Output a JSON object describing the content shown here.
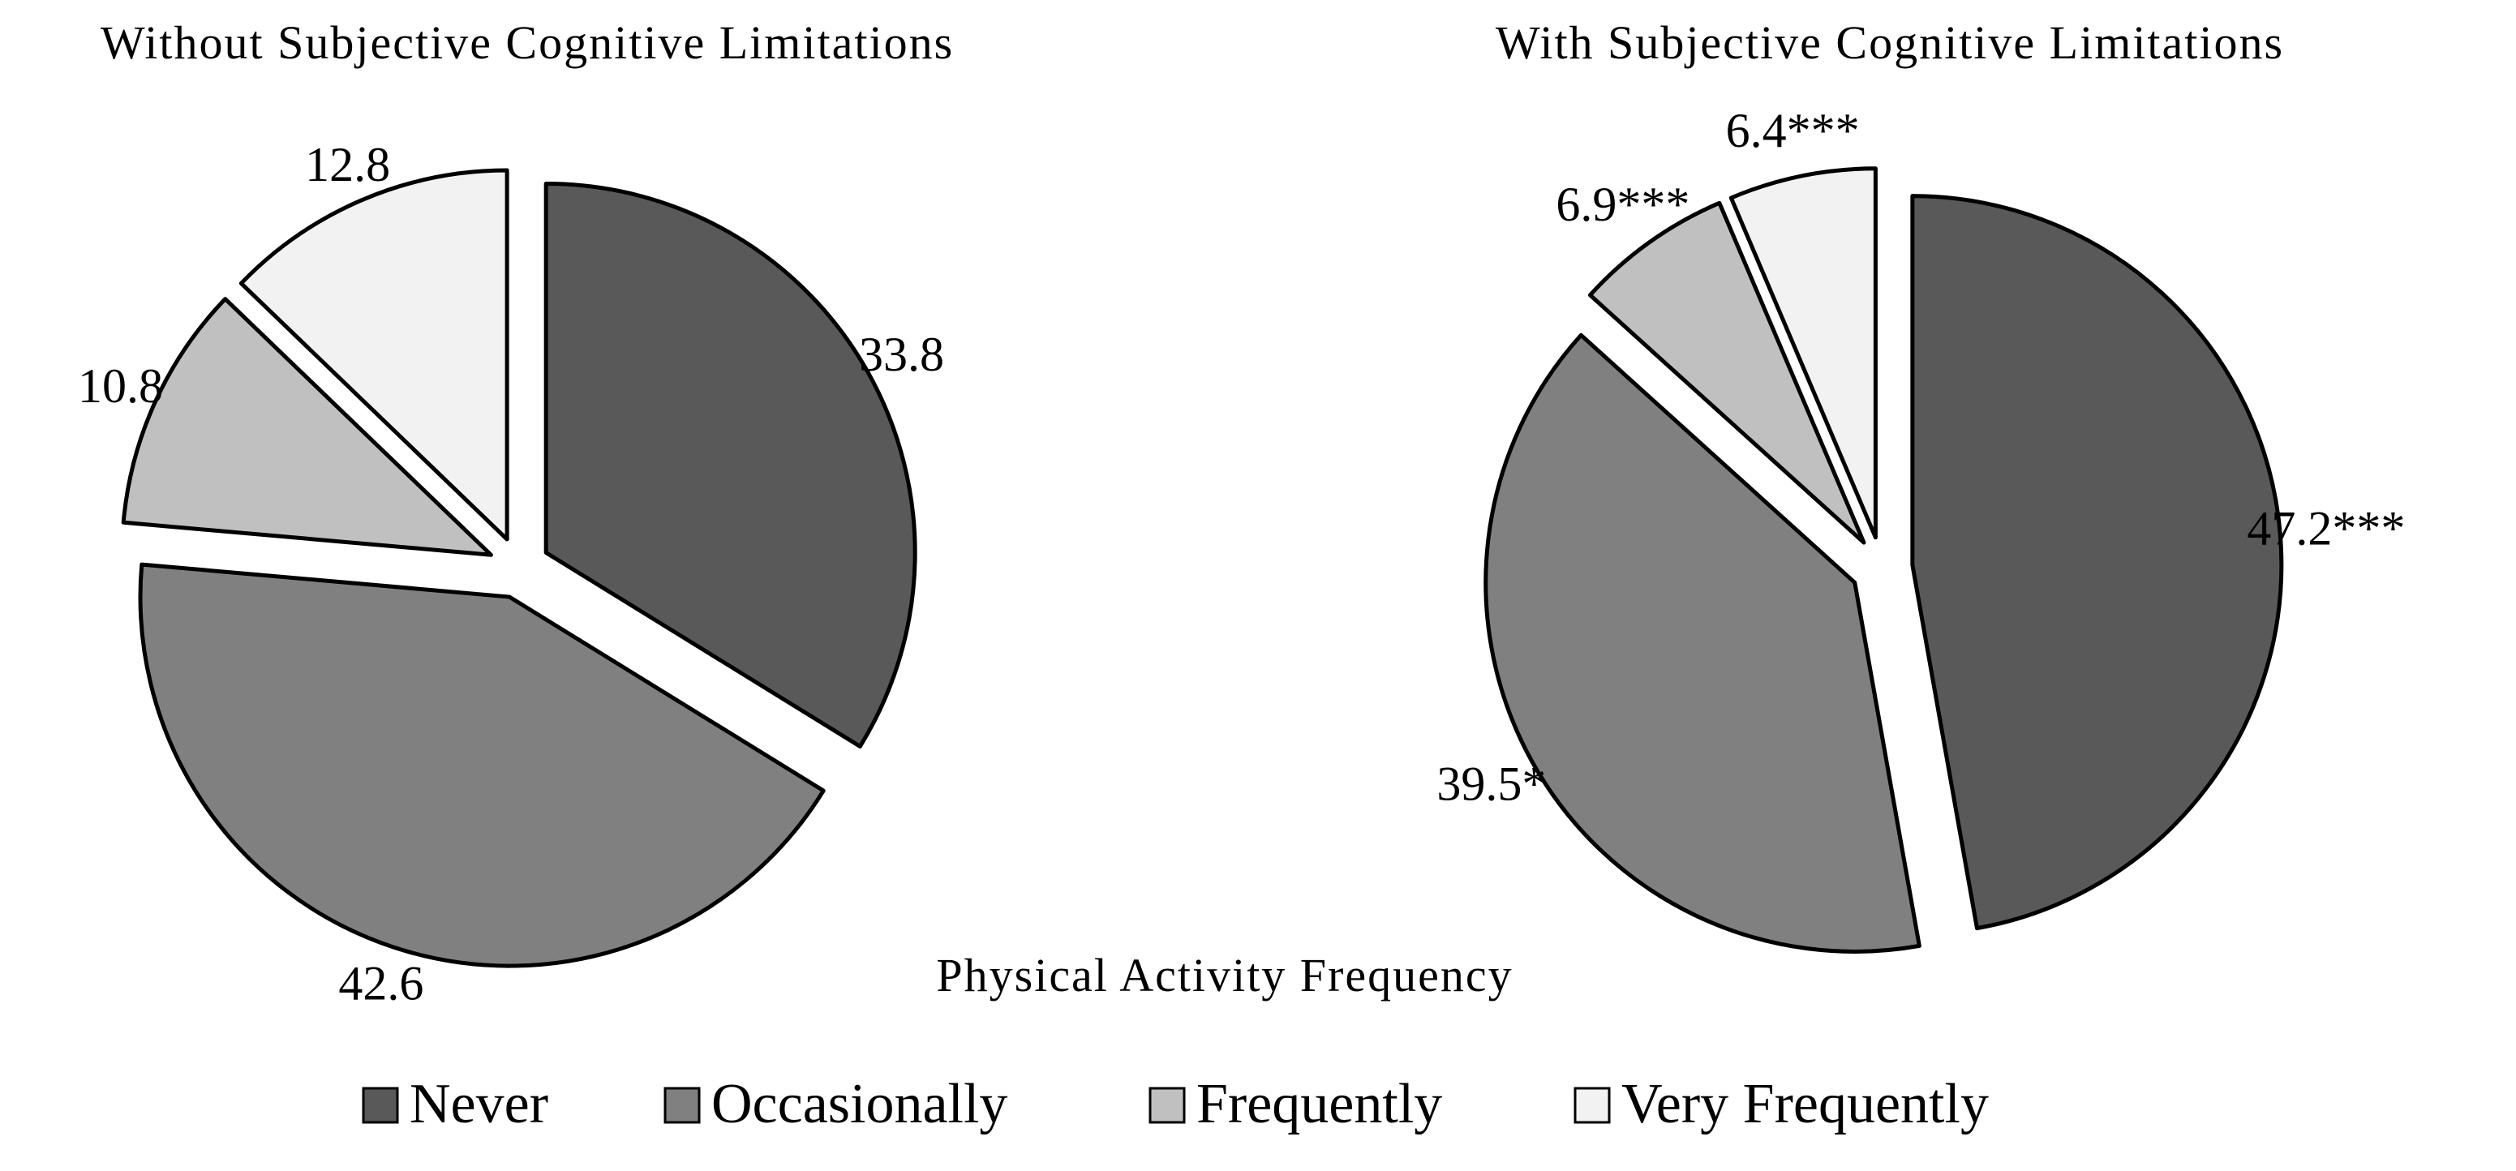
{
  "chart_data": [
    {
      "type": "pie",
      "title": "Without Subjective Cognitive Limitations",
      "slices": [
        {
          "category": "Never",
          "value": 33.8,
          "label": "33.8"
        },
        {
          "category": "Occasionally",
          "value": 42.6,
          "label": "42.6"
        },
        {
          "category": "Frequently",
          "value": 10.8,
          "label": "10.8"
        },
        {
          "category": "Very Frequently",
          "value": 12.8,
          "label": "12.8"
        }
      ],
      "exploded": true
    },
    {
      "type": "pie",
      "title": "With Subjective Cognitive Limitations",
      "slices": [
        {
          "category": "Never",
          "value": 47.2,
          "label": "47.2***"
        },
        {
          "category": "Occasionally",
          "value": 39.5,
          "label": "39.5*"
        },
        {
          "category": "Frequently",
          "value": 6.9,
          "label": "6.9***"
        },
        {
          "category": "Very Frequently",
          "value": 6.4,
          "label": "6.4***"
        }
      ],
      "exploded": true
    }
  ],
  "shared_xlabel": "Physical Activity Frequency",
  "legend": {
    "placement": "bottom-center",
    "items": [
      {
        "label": "Never",
        "color": "#595959"
      },
      {
        "label": "Occasionally",
        "color": "#808080"
      },
      {
        "label": "Frequently",
        "color": "#c0c0c0"
      },
      {
        "label": "Very Frequently",
        "color": "#f2f2f2"
      }
    ]
  }
}
